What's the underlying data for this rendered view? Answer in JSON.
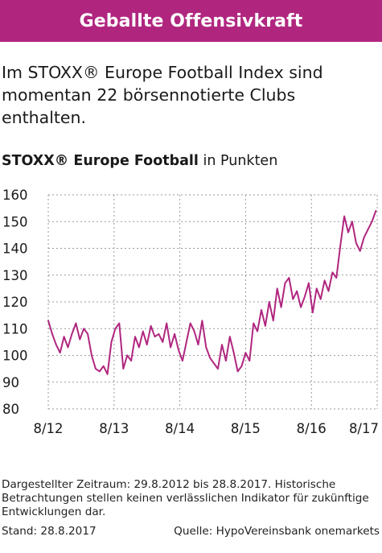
{
  "header": {
    "title": "Geballte Offensivkraft"
  },
  "intro": {
    "text": "Im STOXX® Europe Football Index sind momentan 22 börsennotierte Clubs enthalten."
  },
  "chart_heading": {
    "bold": "STOXX® Europe Football",
    "regular": " in Punkten"
  },
  "chart_data": {
    "type": "line",
    "ylim": [
      80,
      160
    ],
    "yticks": [
      80,
      90,
      100,
      110,
      120,
      130,
      140,
      150,
      160
    ],
    "x_tick_labels": [
      "8/12",
      "8/13",
      "8/14",
      "8/15",
      "8/16",
      "8/17"
    ],
    "x_tick_values": [
      2012.66,
      2013.66,
      2014.66,
      2015.66,
      2016.66,
      2017.66
    ],
    "xlim": [
      2012.66,
      2017.66
    ],
    "grid": true,
    "series": [
      {
        "color": "#b0267f",
        "x": [
          2012.66,
          2012.72,
          2012.78,
          2012.84,
          2012.9,
          2012.96,
          2013.02,
          2013.08,
          2013.14,
          2013.2,
          2013.26,
          2013.32,
          2013.38,
          2013.44,
          2013.5,
          2013.56,
          2013.62,
          2013.68,
          2013.74,
          2013.8,
          2013.86,
          2013.92,
          2013.98,
          2014.04,
          2014.1,
          2014.16,
          2014.22,
          2014.28,
          2014.34,
          2014.4,
          2014.46,
          2014.52,
          2014.58,
          2014.64,
          2014.7,
          2014.76,
          2014.82,
          2014.88,
          2014.94,
          2015.0,
          2015.06,
          2015.12,
          2015.18,
          2015.24,
          2015.3,
          2015.36,
          2015.42,
          2015.48,
          2015.54,
          2015.6,
          2015.66,
          2015.72,
          2015.78,
          2015.84,
          2015.9,
          2015.96,
          2016.02,
          2016.08,
          2016.14,
          2016.2,
          2016.26,
          2016.32,
          2016.38,
          2016.44,
          2016.5,
          2016.56,
          2016.62,
          2016.68,
          2016.74,
          2016.8,
          2016.86,
          2016.92,
          2016.98,
          2017.04,
          2017.1,
          2017.16,
          2017.22,
          2017.28,
          2017.34,
          2017.4,
          2017.46,
          2017.52,
          2017.58,
          2017.64
        ],
        "y": [
          113,
          108,
          104,
          101,
          107,
          103,
          108,
          112,
          106,
          110,
          108,
          100,
          95,
          94,
          96,
          93,
          105,
          110,
          112,
          95,
          100,
          98,
          107,
          103,
          109,
          104,
          111,
          107,
          108,
          105,
          112,
          103,
          108,
          102,
          98,
          105,
          112,
          109,
          104,
          113,
          103,
          99,
          97,
          95,
          104,
          98,
          107,
          101,
          94,
          96,
          101,
          98,
          112,
          109,
          117,
          111,
          120,
          113,
          125,
          118,
          127,
          129,
          121,
          124,
          118,
          122,
          127,
          116,
          125,
          121,
          128,
          124,
          131,
          129,
          141,
          152,
          146,
          150,
          142,
          139,
          144,
          147,
          150,
          154
        ]
      }
    ]
  },
  "footnote": {
    "text": "Dargestellter Zeitraum: 29.8.2012 bis 28.8.2017. Historische Betrachtungen stellen keinen verlässlichen Indikator für zukünftige Entwicklungen dar."
  },
  "footer": {
    "stand": "Stand: 28.8.2017",
    "source": "Quelle: HypoVereinsbank onemarkets"
  }
}
